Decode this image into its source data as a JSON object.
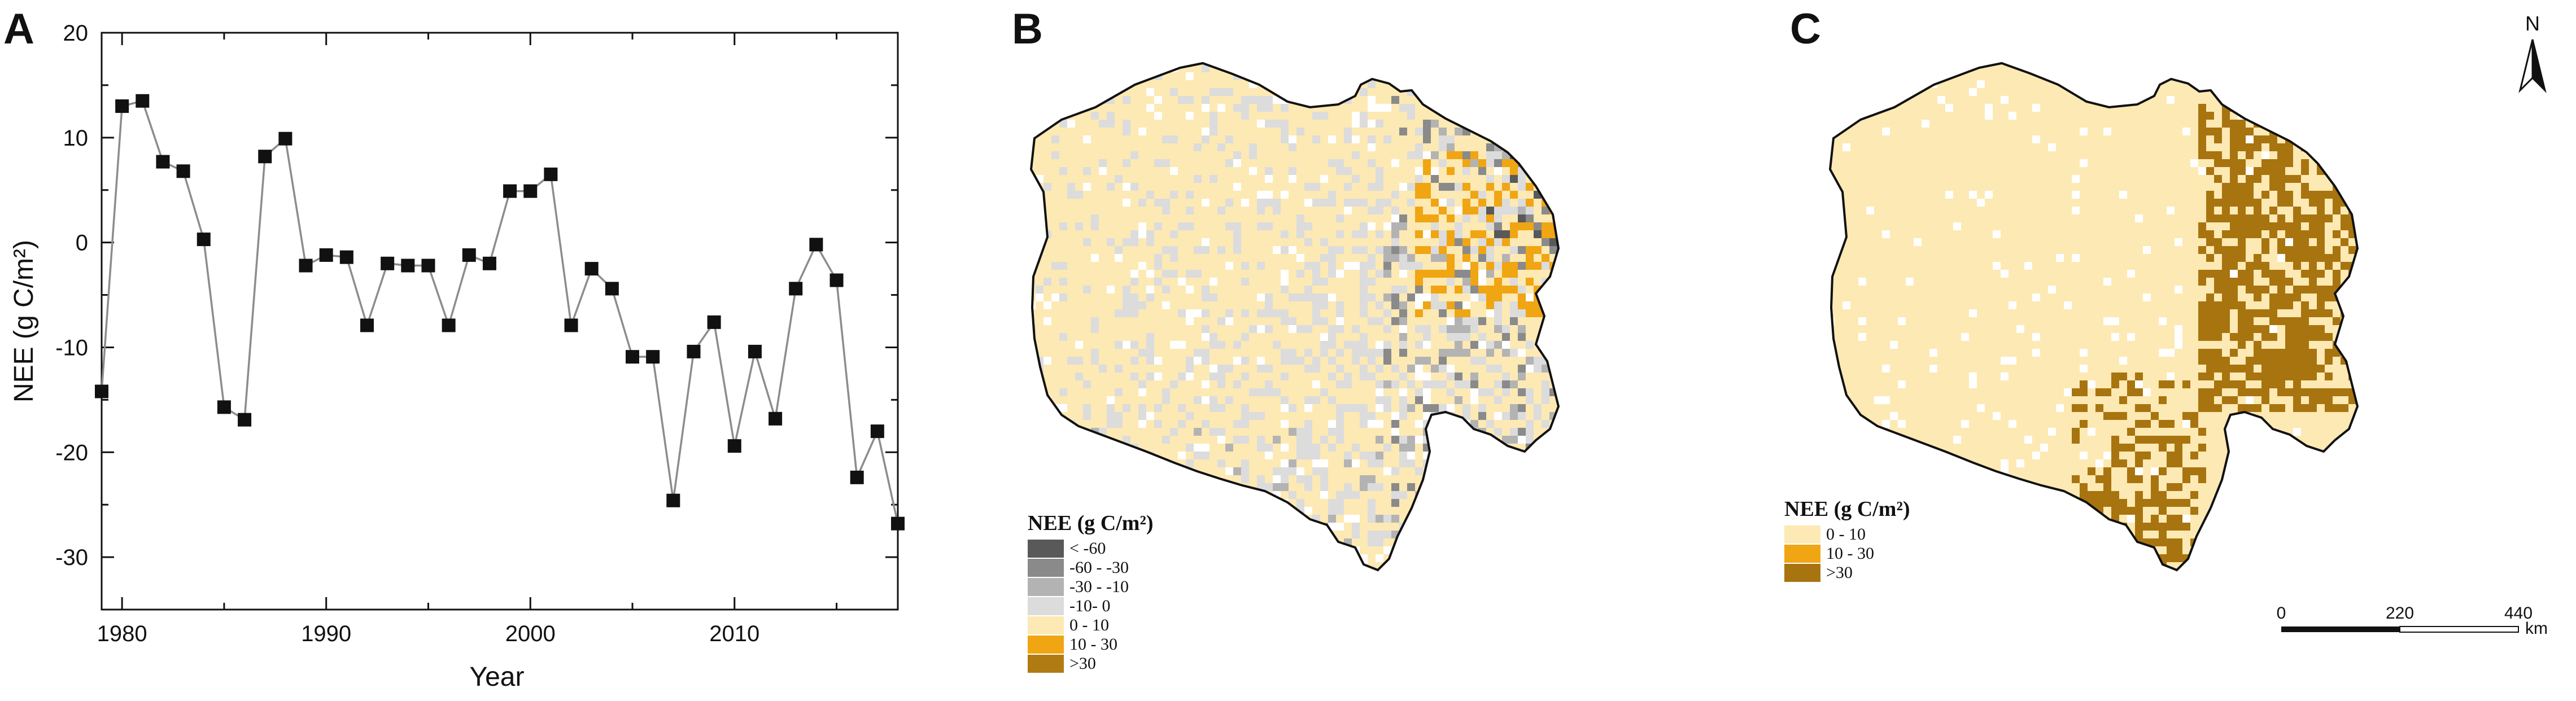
{
  "panels": {
    "a": {
      "label": "A"
    },
    "b": {
      "label": "B"
    },
    "c": {
      "label": "C"
    }
  },
  "chart_data": [
    {
      "type": "line",
      "panel": "A",
      "title": "",
      "xlabel": "Year",
      "ylabel": "NEE (g C/m²)",
      "xlim": [
        1979,
        2018
      ],
      "ylim": [
        -35,
        20
      ],
      "xticks": [
        1980,
        1990,
        2000,
        2010
      ],
      "yticks": [
        20,
        10,
        0,
        -10,
        -20,
        -30
      ],
      "grid": false,
      "marker": "square",
      "x": [
        1979,
        1980,
        1981,
        1982,
        1983,
        1984,
        1985,
        1986,
        1987,
        1988,
        1989,
        1990,
        1991,
        1992,
        1993,
        1994,
        1995,
        1996,
        1997,
        1998,
        1999,
        2000,
        2001,
        2002,
        2003,
        2004,
        2005,
        2006,
        2007,
        2008,
        2009,
        2010,
        2011,
        2012,
        2013,
        2014,
        2015,
        2016,
        2017,
        2018
      ],
      "y": [
        -14.2,
        13.0,
        13.5,
        7.7,
        6.8,
        0.3,
        -15.7,
        -16.9,
        8.2,
        9.9,
        -2.2,
        -1.2,
        -1.4,
        -7.9,
        -2.0,
        -2.2,
        -2.2,
        -7.9,
        -1.2,
        -2.0,
        4.9,
        4.9,
        6.5,
        -7.9,
        -2.5,
        -4.4,
        -10.9,
        -10.9,
        -24.6,
        -10.4,
        -7.6,
        -19.4,
        -10.4,
        -16.8,
        -4.4,
        -0.2,
        -3.6,
        -22.4,
        -18.0,
        -26.8
      ]
    },
    {
      "type": "heatmap",
      "panel": "B",
      "legend": {
        "title": "NEE (g C/m²)",
        "classes": [
          {
            "label": "< -60",
            "color": "#595959"
          },
          {
            "label": "-60 - -30",
            "color": "#8a8a8a"
          },
          {
            "label": "-30 - -10",
            "color": "#b3b3b3"
          },
          {
            "label": "-10- 0",
            "color": "#dcdcdc"
          },
          {
            "label": "0 - 10",
            "color": "#fde9b3"
          },
          {
            "label": "10 - 30",
            "color": "#f0a513"
          },
          {
            "label": ">30",
            "color": "#b07b12"
          }
        ]
      }
    },
    {
      "type": "heatmap",
      "panel": "C",
      "legend": {
        "title": "NEE (g C/m²)",
        "classes": [
          {
            "label": "0 - 10",
            "color": "#fde9b3"
          },
          {
            "label": "10 - 30",
            "color": "#f0a513"
          },
          {
            "label": ">30",
            "color": "#a8740f"
          }
        ]
      },
      "north_arrow": {
        "label": "N"
      },
      "scale_bar": {
        "ticks": [
          "0",
          "220",
          "440"
        ],
        "unit": "km"
      }
    }
  ]
}
